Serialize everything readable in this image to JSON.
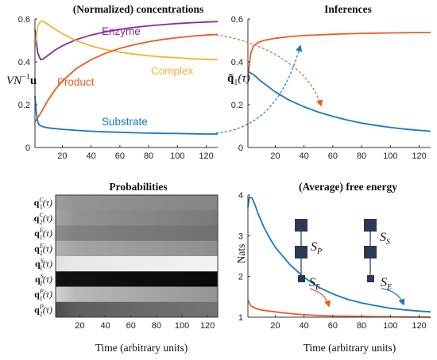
{
  "colors": {
    "enzyme": "#8B2A9B",
    "complex": "#F2B531",
    "product": "#EE5B22",
    "substrate": "#1478C7",
    "node": "#2B3A52"
  },
  "chart_data": [
    {
      "id": "concentrations",
      "type": "line",
      "title": "(Normalized) concentrations",
      "ylabel": "VN⁻¹u",
      "xlim": [
        1,
        128
      ],
      "ylim": [
        0,
        0.6
      ],
      "xticks": [
        20,
        40,
        60,
        80,
        100,
        120
      ],
      "yticks": [
        0,
        0.2,
        0.4,
        0.6
      ],
      "series": [
        {
          "name": "Enzyme",
          "color_key": "enzyme",
          "x": [
            1,
            3,
            5,
            7,
            10,
            15,
            20,
            30,
            40,
            50,
            60,
            70,
            80,
            90,
            100,
            110,
            120,
            128
          ],
          "y": [
            0.55,
            0.44,
            0.41,
            0.415,
            0.43,
            0.455,
            0.475,
            0.505,
            0.525,
            0.54,
            0.552,
            0.561,
            0.568,
            0.574,
            0.579,
            0.583,
            0.586,
            0.588
          ]
        },
        {
          "name": "Complex",
          "color_key": "complex",
          "x": [
            1,
            3,
            5,
            7,
            10,
            15,
            20,
            30,
            40,
            50,
            60,
            70,
            80,
            90,
            100,
            110,
            120,
            128
          ],
          "y": [
            0.47,
            0.57,
            0.59,
            0.588,
            0.575,
            0.552,
            0.532,
            0.498,
            0.474,
            0.457,
            0.445,
            0.436,
            0.428,
            0.423,
            0.419,
            0.415,
            0.412,
            0.41
          ]
        },
        {
          "name": "Product",
          "color_key": "product",
          "x": [
            1,
            5,
            10,
            15,
            20,
            30,
            40,
            50,
            60,
            70,
            80,
            90,
            100,
            110,
            120,
            128
          ],
          "y": [
            0.12,
            0.16,
            0.22,
            0.27,
            0.31,
            0.37,
            0.41,
            0.44,
            0.463,
            0.48,
            0.494,
            0.505,
            0.513,
            0.52,
            0.525,
            0.528
          ]
        },
        {
          "name": "Substrate",
          "color_key": "substrate",
          "x": [
            1,
            2,
            3,
            4,
            6,
            10,
            15,
            20,
            30,
            40,
            50,
            60,
            70,
            80,
            90,
            100,
            110,
            120,
            128
          ],
          "y": [
            0.24,
            0.16,
            0.12,
            0.105,
            0.098,
            0.092,
            0.088,
            0.085,
            0.08,
            0.076,
            0.073,
            0.071,
            0.069,
            0.067,
            0.066,
            0.065,
            0.064,
            0.063,
            0.063
          ]
        }
      ]
    },
    {
      "id": "inferences",
      "type": "line",
      "title": "Inferences",
      "ylabel": "q̃₁(τ)",
      "xlim": [
        1,
        128
      ],
      "ylim": [
        0,
        0.6
      ],
      "xticks": [
        20,
        40,
        60,
        80,
        100,
        120
      ],
      "yticks": [
        0,
        0.2,
        0.4,
        0.6
      ],
      "series": [
        {
          "color_key": "product",
          "x": [
            1,
            3,
            5,
            8,
            12,
            20,
            30,
            40,
            50,
            60,
            70,
            80,
            90,
            100,
            110,
            120,
            128
          ],
          "y": [
            0.33,
            0.44,
            0.475,
            0.49,
            0.5,
            0.51,
            0.518,
            0.523,
            0.526,
            0.529,
            0.531,
            0.533,
            0.534,
            0.535,
            0.536,
            0.537,
            0.537
          ]
        },
        {
          "color_key": "substrate",
          "x": [
            1,
            5,
            10,
            20,
            30,
            40,
            50,
            60,
            70,
            80,
            90,
            100,
            110,
            120,
            128
          ],
          "y": [
            0.355,
            0.34,
            0.31,
            0.26,
            0.22,
            0.19,
            0.165,
            0.145,
            0.128,
            0.114,
            0.103,
            0.094,
            0.086,
            0.08,
            0.076
          ]
        }
      ]
    },
    {
      "id": "probabilities",
      "type": "heatmap",
      "title": "Probabilities",
      "xlabel": "Time (arbitrary units)",
      "xlim": [
        1,
        128
      ],
      "xticks": [
        20,
        40,
        60,
        80,
        100,
        120
      ],
      "rows": [
        {
          "label": "q",
          "sub": "1",
          "sup": "C",
          "start": 0.62,
          "end": 0.52
        },
        {
          "label": "q",
          "sub": "2",
          "sup": "C",
          "start": 0.64,
          "end": 0.48
        },
        {
          "label": "q",
          "sub": "1",
          "sup": "E",
          "start": 0.55,
          "end": 0.44
        },
        {
          "label": "q",
          "sub": "2",
          "sup": "E",
          "start": 0.7,
          "end": 0.56
        },
        {
          "label": "q",
          "sub": "1",
          "sup": "S",
          "start": 0.88,
          "end": 0.95
        },
        {
          "label": "q",
          "sub": "2",
          "sup": "S",
          "start": 0.08,
          "end": 0.04
        },
        {
          "label": "q",
          "sub": "1",
          "sup": "P",
          "start": 0.82,
          "end": 0.58
        },
        {
          "label": "q",
          "sub": "2",
          "sup": "P",
          "start": 0.3,
          "end": 0.46
        }
      ],
      "row_suffix": "(τ)"
    },
    {
      "id": "free-energy",
      "type": "line",
      "title": "(Average) free energy",
      "ylabel": "Nats",
      "xlabel": "Time (arbitrary units)",
      "xlim": [
        1,
        128
      ],
      "ylim": [
        1,
        4
      ],
      "xticks": [
        20,
        40,
        60,
        80,
        100,
        120
      ],
      "yticks": [
        1,
        2,
        3,
        4
      ],
      "series": [
        {
          "color_key": "substrate",
          "x": [
            1,
            2,
            4,
            6,
            8,
            12,
            16,
            20,
            30,
            40,
            50,
            60,
            70,
            80,
            90,
            100,
            110,
            120,
            128
          ],
          "y": [
            3.7,
            3.95,
            3.92,
            3.75,
            3.55,
            3.22,
            2.95,
            2.72,
            2.3,
            1.98,
            1.74,
            1.57,
            1.44,
            1.35,
            1.28,
            1.22,
            1.18,
            1.15,
            1.13
          ]
        },
        {
          "color_key": "product",
          "x": [
            1,
            3,
            6,
            10,
            20,
            30,
            40,
            50,
            60,
            80,
            100,
            128
          ],
          "y": [
            1.42,
            1.28,
            1.22,
            1.18,
            1.13,
            1.09,
            1.06,
            1.04,
            1.03,
            1.02,
            1.01,
            1.0
          ]
        }
      ],
      "diagram_labels": {
        "sp": "P",
        "se_left": "E",
        "ss": "S",
        "se_right": "E"
      }
    }
  ]
}
